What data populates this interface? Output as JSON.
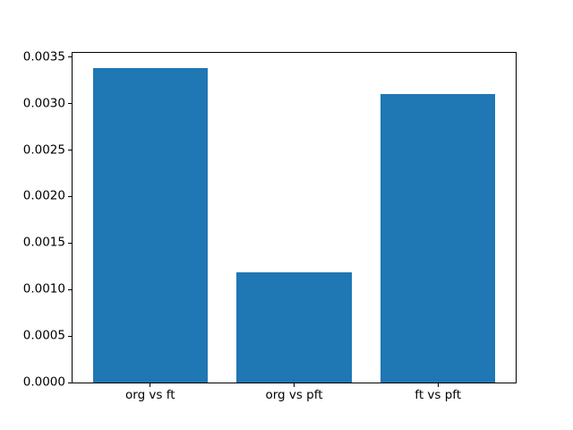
{
  "chart_data": {
    "type": "bar",
    "categories": [
      "org vs ft",
      "org vs pft",
      "ft vs pft"
    ],
    "values": [
      0.00338,
      0.00119,
      0.0031
    ],
    "bar_positions": [
      0,
      1,
      2
    ],
    "bar_width": 0.8,
    "title": "",
    "xlabel": "",
    "ylabel": "",
    "xlim": [
      -0.54,
      2.54
    ],
    "ylim": [
      0,
      0.003546
    ],
    "yticks": [
      0.0,
      0.0005,
      0.001,
      0.0015,
      0.002,
      0.0025,
      0.003,
      0.0035
    ],
    "ytick_labels": [
      "0.0000",
      "0.0005",
      "0.0010",
      "0.0015",
      "0.0020",
      "0.0025",
      "0.0030",
      "0.0035"
    ],
    "grid": false,
    "legend": null,
    "colors": {
      "bar": "#1f77b4",
      "background": "#ffffff",
      "spine": "#000000",
      "text": "#000000"
    }
  }
}
